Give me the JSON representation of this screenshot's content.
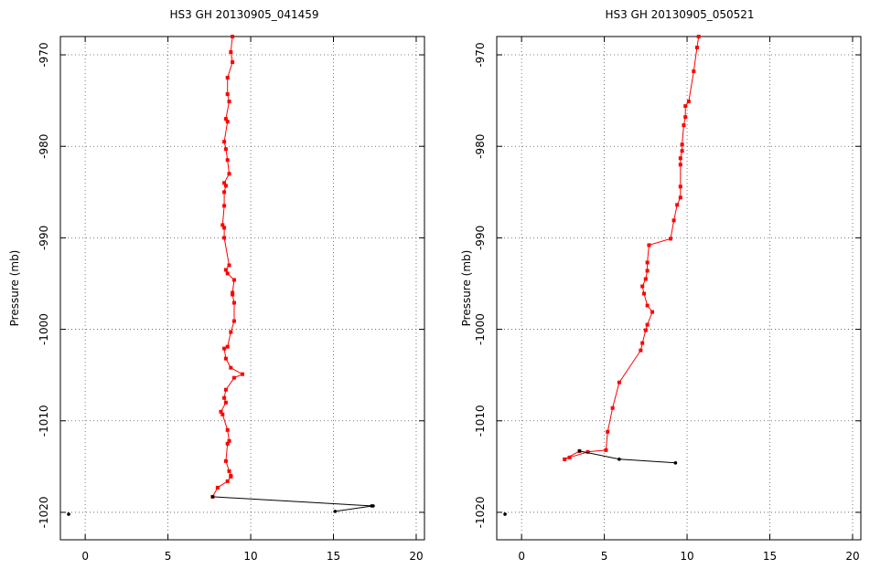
{
  "chart_data": [
    {
      "type": "line",
      "title": "HS3 GH  20130905_041459",
      "ylabel": "Pressure (mb)",
      "xlabel": "",
      "xlim": [
        -1.5,
        20.5
      ],
      "ylim": [
        -968,
        -1023
      ],
      "xticks": [
        0,
        5,
        10,
        15,
        20
      ],
      "yticks": [
        -970,
        -980,
        -990,
        -1000,
        -1010,
        -1020
      ],
      "grid": true,
      "series": [
        {
          "color": "#ff0000",
          "x": [
            8.9,
            8.8,
            8.9,
            8.6,
            8.6,
            8.7,
            8.5,
            8.6,
            8.4,
            8.5,
            8.6,
            8.7,
            8.4,
            8.5,
            8.4,
            8.4,
            8.3,
            8.4,
            8.4,
            8.7,
            8.5,
            8.6,
            9.0,
            8.9,
            8.9,
            9.0,
            9.0,
            8.8,
            8.6,
            8.4,
            8.5,
            8.8,
            9.5,
            9.0,
            8.5,
            8.4,
            8.5,
            8.2,
            8.3,
            8.6,
            8.7,
            8.6,
            8.5,
            8.7,
            8.8,
            8.8,
            8.6,
            8.0,
            7.7
          ],
          "y": [
            -968,
            -969.7,
            -970.8,
            -972.5,
            -974.3,
            -975.1,
            -977.0,
            -977.3,
            -979.5,
            -980.3,
            -981.5,
            -983.0,
            -984.0,
            -984.3,
            -985.0,
            -986.5,
            -988.6,
            -988.9,
            -990.0,
            -993.0,
            -993.5,
            -993.9,
            -994.6,
            -996.0,
            -996.2,
            -997.1,
            -999.1,
            -1000.3,
            -1001.9,
            -1002.1,
            -1003.2,
            -1004.2,
            -1004.9,
            -1005.3,
            -1006.6,
            -1007.5,
            -1008.0,
            -1009.0,
            -1009.3,
            -1011.0,
            -1012.2,
            -1012.5,
            -1014.4,
            -1015.5,
            -1016.0,
            -1016.1,
            -1016.6,
            -1017.3,
            -1018.3
          ]
        },
        {
          "color": "#000000",
          "x": [
            7.7,
            17.3,
            17.4,
            15.1
          ],
          "y": [
            -1018.3,
            -1019.3,
            -1019.3,
            -1019.9
          ]
        },
        {
          "color": "#000000",
          "x": [
            -1.0
          ],
          "y": [
            -1020.2
          ]
        }
      ]
    },
    {
      "type": "line",
      "title": "HS3 GH  20130905_050521",
      "ylabel": "Pressure (mb)",
      "xlabel": "",
      "xlim": [
        -1.5,
        20.5
      ],
      "ylim": [
        -968,
        -1023
      ],
      "xticks": [
        0,
        5,
        10,
        15,
        20
      ],
      "yticks": [
        -970,
        -980,
        -990,
        -1000,
        -1010,
        -1020
      ],
      "grid": true,
      "series": [
        {
          "color": "#ff0000",
          "x": [
            10.7,
            10.6,
            10.4,
            10.1,
            9.9,
            9.9,
            9.8,
            9.7,
            9.7,
            9.6,
            9.6,
            9.6,
            9.6,
            9.4,
            9.2,
            9.0,
            7.7,
            7.6,
            7.6,
            7.5,
            7.3,
            7.4,
            7.6,
            7.9,
            7.6,
            7.5,
            7.3,
            7.2,
            5.9,
            5.5,
            5.2,
            5.1,
            4.0,
            2.9,
            2.6,
            3.5
          ],
          "y": [
            -968,
            -969.2,
            -971.8,
            -975.1,
            -975.6,
            -976.8,
            -977.7,
            -979.8,
            -980.5,
            -981.3,
            -982.0,
            -984.4,
            -985.6,
            -986.4,
            -988.1,
            -990.1,
            -990.8,
            -992.7,
            -993.6,
            -994.5,
            -995.3,
            -996.1,
            -997.4,
            -998.1,
            -999.5,
            -1000.1,
            -1001.5,
            -1002.3,
            -1005.8,
            -1008.6,
            -1011.2,
            -1013.2,
            -1013.4,
            -1014.0,
            -1014.2,
            -1013.3
          ]
        },
        {
          "color": "#000000",
          "x": [
            3.5,
            5.9,
            9.3
          ],
          "y": [
            -1013.3,
            -1014.2,
            -1014.6
          ]
        },
        {
          "color": "#000000",
          "x": [
            -1.0
          ],
          "y": [
            -1020.2
          ]
        }
      ]
    }
  ]
}
